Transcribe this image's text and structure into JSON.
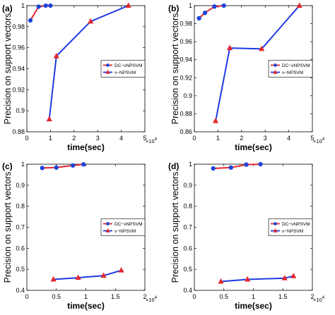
{
  "chart_data": [
    {
      "type": "line",
      "panel_label": "(a)",
      "xlabel": "time(sec)",
      "ylabel": "Precision on support vectors",
      "x_scale_label": "×10",
      "x_scale_exponent": "4",
      "xlim": [
        0,
        5
      ],
      "ylim": [
        0.88,
        1
      ],
      "xticks": [
        0,
        1,
        2,
        3,
        4,
        5
      ],
      "yticks": [
        0.88,
        0.9,
        0.92,
        0.94,
        0.96,
        0.98,
        1
      ],
      "grid": false,
      "legend_position": "center-right",
      "series": [
        {
          "name": "DC−νNPSVM",
          "line_color": "#e3262c",
          "marker": "circle",
          "marker_color": "#1c46d8",
          "x": [
            0.15,
            0.5,
            0.8,
            1.0
          ],
          "y": [
            0.986,
            0.999,
            1.0,
            1.0
          ]
        },
        {
          "name": "ν−NPSVM",
          "line_color": "#1d3ae2",
          "marker": "triangle",
          "marker_color": "#e3262c",
          "x": [
            0.95,
            1.25,
            2.7,
            4.3
          ],
          "y": [
            0.892,
            0.952,
            0.985,
            1.0
          ]
        }
      ]
    },
    {
      "type": "line",
      "panel_label": "(b)",
      "xlabel": "time(sec)",
      "ylabel": "Precision on support vectors",
      "x_scale_label": "×10",
      "x_scale_exponent": "4",
      "xlim": [
        0,
        5
      ],
      "ylim": [
        0.86,
        1
      ],
      "xticks": [
        0,
        1,
        2,
        3,
        4,
        5
      ],
      "yticks": [
        0.86,
        0.88,
        0.9,
        0.92,
        0.94,
        0.96,
        0.98,
        1
      ],
      "grid": false,
      "legend_position": "center-right",
      "series": [
        {
          "name": "DC−νNPSVM",
          "line_color": "#e3262c",
          "marker": "circle",
          "marker_color": "#1c46d8",
          "x": [
            0.2,
            0.45,
            0.85,
            1.25
          ],
          "y": [
            0.986,
            0.992,
            0.999,
            1.0
          ]
        },
        {
          "name": "ν−NPSVM",
          "line_color": "#1d3ae2",
          "marker": "triangle",
          "marker_color": "#e3262c",
          "x": [
            0.9,
            1.5,
            2.85,
            4.45
          ],
          "y": [
            0.872,
            0.953,
            0.952,
            1.0
          ]
        }
      ]
    },
    {
      "type": "line",
      "panel_label": "(c)",
      "xlabel": "time(sec)",
      "ylabel": "Precision on support vectors",
      "x_scale_label": "×10",
      "x_scale_exponent": "4",
      "xlim": [
        0,
        2
      ],
      "ylim": [
        0.4,
        1
      ],
      "xticks": [
        0,
        0.5,
        1,
        1.5,
        2
      ],
      "yticks": [
        0.4,
        0.5,
        0.6,
        0.7,
        0.8,
        0.9,
        1
      ],
      "grid": false,
      "legend_position": "center-right",
      "series": [
        {
          "name": "DC−νNPSVM",
          "line_color": "#e3262c",
          "marker": "circle",
          "marker_color": "#1c46d8",
          "x": [
            0.26,
            0.5,
            0.78,
            0.96
          ],
          "y": [
            0.982,
            0.984,
            0.994,
            0.999
          ]
        },
        {
          "name": "ν−NPSVM",
          "line_color": "#1d3ae2",
          "marker": "triangle",
          "marker_color": "#e3262c",
          "x": [
            0.45,
            0.87,
            1.3,
            1.6
          ],
          "y": [
            0.452,
            0.46,
            0.47,
            0.495
          ]
        }
      ]
    },
    {
      "type": "line",
      "panel_label": "(d)",
      "xlabel": "time(sec)",
      "ylabel": "Precision on support vectors",
      "x_scale_label": "×10",
      "x_scale_exponent": "4",
      "xlim": [
        0,
        2
      ],
      "ylim": [
        0.4,
        1
      ],
      "xticks": [
        0,
        0.5,
        1,
        1.5,
        2
      ],
      "yticks": [
        0.4,
        0.5,
        0.6,
        0.7,
        0.8,
        0.9,
        1
      ],
      "grid": false,
      "legend_position": "center-right",
      "series": [
        {
          "name": "DC−νNPSVM",
          "line_color": "#e3262c",
          "marker": "circle",
          "marker_color": "#1c46d8",
          "x": [
            0.32,
            0.62,
            0.88,
            1.12
          ],
          "y": [
            0.98,
            0.984,
            0.998,
            1.0
          ]
        },
        {
          "name": "ν−NPSVM",
          "line_color": "#1d3ae2",
          "marker": "triangle",
          "marker_color": "#e3262c",
          "x": [
            0.45,
            0.9,
            1.53,
            1.68
          ],
          "y": [
            0.442,
            0.452,
            0.458,
            0.468
          ]
        }
      ]
    }
  ]
}
